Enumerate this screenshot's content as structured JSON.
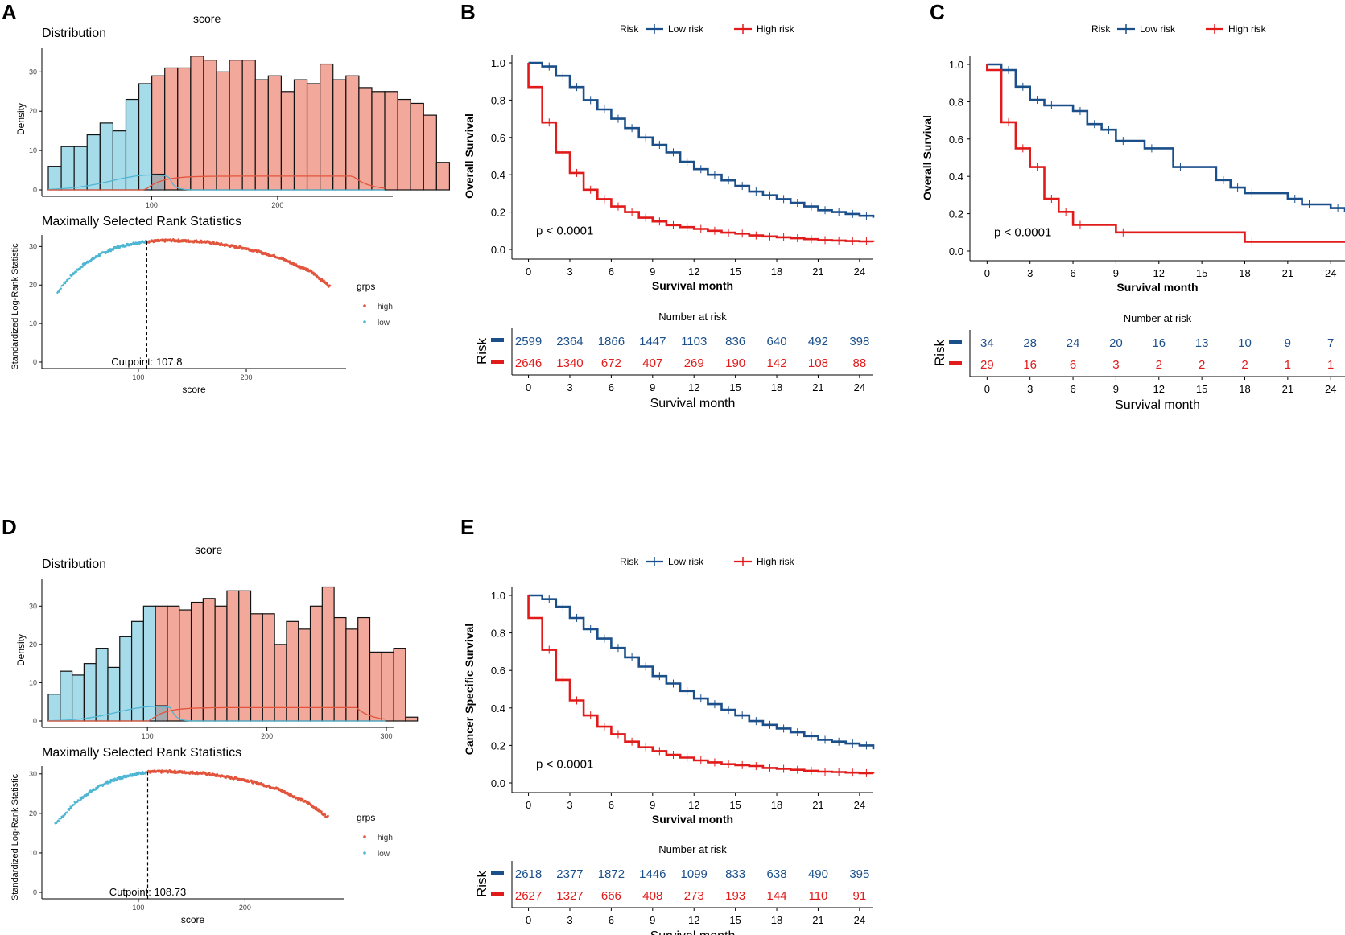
{
  "panels": {
    "a_label": "A",
    "b_label": "B",
    "c_label": "C",
    "d_label": "D",
    "e_label": "E"
  },
  "colors": {
    "low_fill": "#a6dbea",
    "high_fill": "#f3a89c",
    "overlap_fill": "#a9aab0",
    "low_point": "#4fb6d3",
    "high_point": "#e2553c",
    "km_low": "#1b4f8a",
    "km_high": "#e11a1a"
  },
  "chart_data": [
    {
      "id": "A",
      "type": "histogram+scatter",
      "title": "score",
      "hist": {
        "subtitle": "Distribution",
        "ylabel": "Density",
        "xticks": [
          100,
          200
        ],
        "yticks": [
          0,
          10,
          20,
          30
        ],
        "xlim": [
          18,
          285
        ],
        "ylim": [
          0,
          36
        ],
        "bin_start": 18,
        "bin_width": 10.27,
        "cut_bin": 8,
        "counts": [
          6,
          11,
          11,
          14,
          17,
          15,
          23,
          27,
          29,
          31,
          31,
          34,
          33,
          30,
          33,
          33,
          28,
          29,
          25,
          28,
          27,
          32,
          28,
          29,
          26,
          25,
          25,
          23,
          22,
          19,
          7
        ]
      },
      "rank": {
        "subtitle": "Maximally Selected Rank Statistics",
        "ylabel": "Standardized Log-Rank Statistic",
        "xlabel": "score",
        "xticks": [
          100,
          200
        ],
        "yticks": [
          0,
          10,
          20,
          30
        ],
        "xlim": [
          18,
          285
        ],
        "ylim": [
          0,
          33
        ],
        "cutpoint": 107.8,
        "cutpoint_label": "Cutpoint: 107.8",
        "legend_title": "grps",
        "legend_items": [
          "high",
          "low"
        ],
        "curve": [
          [
            25,
            18
          ],
          [
            30,
            20
          ],
          [
            38,
            22.5
          ],
          [
            50,
            25.5
          ],
          [
            65,
            28
          ],
          [
            80,
            29.8
          ],
          [
            95,
            30.8
          ],
          [
            107.8,
            31.3
          ],
          [
            130,
            31.6
          ],
          [
            160,
            31.3
          ],
          [
            200,
            29.5
          ],
          [
            230,
            27.2
          ],
          [
            260,
            23.5
          ],
          [
            278,
            19.5
          ]
        ]
      }
    },
    {
      "id": "D",
      "type": "histogram+scatter",
      "title": "score",
      "hist": {
        "subtitle": "Distribution",
        "ylabel": "Density",
        "xticks": [
          100,
          200,
          300
        ],
        "yticks": [
          0,
          10,
          20,
          30
        ],
        "xlim": [
          17,
          300
        ],
        "ylim": [
          0,
          37
        ],
        "bin_start": 17,
        "bin_width": 9.97,
        "cut_bin": 9,
        "counts": [
          7,
          13,
          12,
          15,
          19,
          14,
          22,
          26,
          30,
          30,
          30,
          29,
          31,
          32,
          30,
          34,
          34,
          28,
          28,
          20,
          26,
          24,
          30,
          35,
          27,
          24,
          27,
          18,
          18,
          19,
          1
        ]
      },
      "rank": {
        "subtitle": "Maximally Selected Rank Statistics",
        "ylabel": "Standardized Log-Rank Statistic",
        "xlabel": "score",
        "xticks": [
          100,
          200
        ],
        "yticks": [
          0,
          10,
          20,
          30
        ],
        "xlim": [
          17,
          285
        ],
        "ylim": [
          0,
          32
        ],
        "cutpoint": 108.73,
        "cutpoint_label": "Cutpoint: 108.73",
        "legend_title": "grps",
        "legend_items": [
          "high",
          "low"
        ],
        "curve": [
          [
            22,
            17.5
          ],
          [
            30,
            19.5
          ],
          [
            40,
            22.5
          ],
          [
            55,
            25.5
          ],
          [
            70,
            27.8
          ],
          [
            90,
            29.6
          ],
          [
            108.73,
            30.5
          ],
          [
            130,
            30.6
          ],
          [
            160,
            30.2
          ],
          [
            200,
            28.5
          ],
          [
            230,
            26.3
          ],
          [
            260,
            22.5
          ],
          [
            278,
            19
          ]
        ]
      }
    },
    {
      "id": "B",
      "type": "line",
      "legend_title": "Risk",
      "legend_items": [
        "Low risk",
        "High risk"
      ],
      "ylabel": "Overall Survival",
      "xlabel": "Survival month",
      "xticks": [
        0,
        3,
        6,
        9,
        12,
        15,
        18,
        21,
        24
      ],
      "yticks": [
        "0.0",
        "0.2",
        "0.4",
        "0.6",
        "0.8",
        "1.0"
      ],
      "xlim": [
        -1.2,
        25
      ],
      "ylim": [
        -0.05,
        1.05
      ],
      "pvalue": "p < 0.0001",
      "series": [
        {
          "name": "Low risk",
          "x": [
            0,
            1,
            2,
            3,
            4,
            5,
            6,
            7,
            8,
            9,
            10,
            11,
            12,
            13,
            14,
            15,
            16,
            17,
            18,
            19,
            20,
            21,
            22,
            23,
            24,
            25
          ],
          "y": [
            1.0,
            0.98,
            0.93,
            0.87,
            0.8,
            0.75,
            0.7,
            0.65,
            0.6,
            0.56,
            0.52,
            0.47,
            0.43,
            0.4,
            0.37,
            0.34,
            0.31,
            0.29,
            0.27,
            0.25,
            0.23,
            0.21,
            0.2,
            0.19,
            0.18,
            0.17
          ]
        },
        {
          "name": "High risk",
          "x": [
            0,
            1,
            2,
            3,
            4,
            5,
            6,
            7,
            8,
            9,
            10,
            11,
            12,
            13,
            14,
            15,
            16,
            17,
            18,
            19,
            20,
            21,
            22,
            23,
            24,
            25
          ],
          "y": [
            0.87,
            0.68,
            0.52,
            0.41,
            0.32,
            0.27,
            0.23,
            0.2,
            0.17,
            0.15,
            0.13,
            0.12,
            0.11,
            0.1,
            0.09,
            0.085,
            0.075,
            0.07,
            0.065,
            0.06,
            0.055,
            0.05,
            0.048,
            0.045,
            0.043,
            0.04
          ]
        }
      ],
      "risk_table": {
        "title": "Number at risk",
        "ylabel": "Risk",
        "xlabel": "Survival month",
        "low": [
          "2599",
          "2364",
          "1866",
          "1447",
          "1103",
          "836",
          "640",
          "492",
          "398"
        ],
        "high": [
          "2646",
          "1340",
          "672",
          "407",
          "269",
          "190",
          "142",
          "108",
          "88"
        ]
      }
    },
    {
      "id": "C",
      "type": "line",
      "legend_title": "Risk",
      "legend_items": [
        "Low risk",
        "High risk"
      ],
      "ylabel": "Overall Survival",
      "xlabel": "Survival month",
      "xticks": [
        0,
        3,
        6,
        9,
        12,
        15,
        18,
        21,
        24
      ],
      "yticks": [
        "0.0",
        "0.2",
        "0.4",
        "0.6",
        "0.8",
        "1.0"
      ],
      "xlim": [
        -1.2,
        25
      ],
      "ylim": [
        -0.05,
        1.05
      ],
      "pvalue": "p < 0.0001",
      "series": [
        {
          "name": "Low risk",
          "x": [
            0,
            1,
            2,
            3,
            4,
            6,
            7,
            8,
            9,
            11,
            13,
            16,
            17,
            18,
            21,
            22,
            24,
            25
          ],
          "y": [
            1.0,
            0.97,
            0.88,
            0.81,
            0.78,
            0.75,
            0.68,
            0.65,
            0.59,
            0.55,
            0.45,
            0.38,
            0.34,
            0.31,
            0.28,
            0.25,
            0.23,
            0.21
          ]
        },
        {
          "name": "High risk",
          "x": [
            0,
            1,
            2,
            3,
            4,
            5,
            6,
            9,
            18,
            25
          ],
          "y": [
            0.97,
            0.69,
            0.55,
            0.45,
            0.28,
            0.21,
            0.14,
            0.1,
            0.05,
            0.05
          ]
        }
      ],
      "risk_table": {
        "title": "Number at risk",
        "ylabel": "Risk",
        "xlabel": "Survival month",
        "low": [
          "34",
          "28",
          "24",
          "20",
          "16",
          "13",
          "10",
          "9",
          "7"
        ],
        "high": [
          "29",
          "16",
          "6",
          "3",
          "2",
          "2",
          "2",
          "1",
          "1"
        ]
      }
    },
    {
      "id": "E",
      "type": "line",
      "legend_title": "Risk",
      "legend_items": [
        "Low risk",
        "High risk"
      ],
      "ylabel": "Cancer Specific Survival",
      "xlabel": "Survival month",
      "xticks": [
        0,
        3,
        6,
        9,
        12,
        15,
        18,
        21,
        24
      ],
      "yticks": [
        "0.0",
        "0.2",
        "0.4",
        "0.6",
        "0.8",
        "1.0"
      ],
      "xlim": [
        -1.2,
        25
      ],
      "ylim": [
        -0.05,
        1.05
      ],
      "pvalue": "p < 0.0001",
      "series": [
        {
          "name": "Low risk",
          "x": [
            0,
            1,
            2,
            3,
            4,
            5,
            6,
            7,
            8,
            9,
            10,
            11,
            12,
            13,
            14,
            15,
            16,
            17,
            18,
            19,
            20,
            21,
            22,
            23,
            24,
            25
          ],
          "y": [
            1.0,
            0.98,
            0.94,
            0.88,
            0.82,
            0.77,
            0.72,
            0.67,
            0.62,
            0.57,
            0.53,
            0.49,
            0.45,
            0.42,
            0.39,
            0.36,
            0.33,
            0.31,
            0.29,
            0.27,
            0.25,
            0.23,
            0.22,
            0.21,
            0.2,
            0.18
          ]
        },
        {
          "name": "High risk",
          "x": [
            0,
            1,
            2,
            3,
            4,
            5,
            6,
            7,
            8,
            9,
            10,
            11,
            12,
            13,
            14,
            15,
            16,
            17,
            18,
            19,
            20,
            21,
            22,
            23,
            24,
            25
          ],
          "y": [
            0.88,
            0.71,
            0.55,
            0.44,
            0.36,
            0.3,
            0.26,
            0.22,
            0.19,
            0.17,
            0.15,
            0.135,
            0.12,
            0.11,
            0.1,
            0.095,
            0.09,
            0.08,
            0.075,
            0.07,
            0.065,
            0.06,
            0.058,
            0.055,
            0.052,
            0.05
          ]
        }
      ],
      "risk_table": {
        "title": "Number at risk",
        "ylabel": "Risk",
        "xlabel": "Survival month",
        "low": [
          "2618",
          "2377",
          "1872",
          "1446",
          "1099",
          "833",
          "638",
          "490",
          "395"
        ],
        "high": [
          "2627",
          "1327",
          "666",
          "408",
          "273",
          "193",
          "144",
          "110",
          "91"
        ]
      }
    }
  ]
}
